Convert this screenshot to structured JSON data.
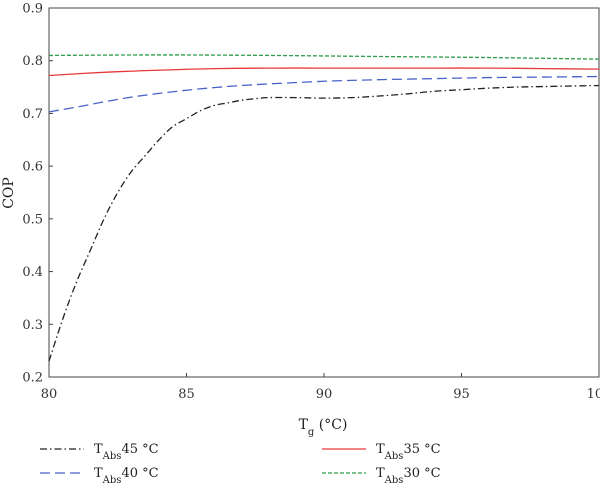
{
  "chart_data": {
    "type": "line",
    "title": "",
    "xlabel": {
      "main": "T",
      "sub": "g",
      "unit": " (°C)"
    },
    "ylabel": "COP",
    "xlim": [
      80,
      100
    ],
    "ylim": [
      0.2,
      0.9
    ],
    "xticks": [
      "80",
      "85",
      "90",
      "95",
      "100"
    ],
    "yticks": [
      "0.2",
      "0.3",
      "0.4",
      "0.5",
      "0.6",
      "0.7",
      "0.8",
      "0.9"
    ],
    "grid": false,
    "legend_position": "bottom",
    "series": [
      {
        "name": {
          "main": "T",
          "sub": "Abs",
          "rest": "45 °C"
        },
        "color": "#222222",
        "dash": "dash-dot",
        "x": [
          80,
          80.5,
          81,
          81.5,
          82,
          82.5,
          83,
          83.5,
          84,
          84.5,
          85,
          85.5,
          86,
          86.5,
          87,
          87.5,
          88,
          89,
          90,
          91,
          92,
          93,
          94,
          95,
          96,
          97,
          98,
          99,
          100
        ],
        "y": [
          0.23,
          0.31,
          0.38,
          0.44,
          0.5,
          0.55,
          0.59,
          0.62,
          0.65,
          0.675,
          0.69,
          0.705,
          0.715,
          0.72,
          0.725,
          0.728,
          0.73,
          0.73,
          0.729,
          0.73,
          0.733,
          0.737,
          0.742,
          0.745,
          0.748,
          0.75,
          0.751,
          0.752,
          0.753
        ]
      },
      {
        "name": {
          "main": "T",
          "sub": "Abs",
          "rest": "35 °C"
        },
        "color": "#e8393a",
        "dash": "solid",
        "x": [
          80,
          82,
          84,
          86,
          88,
          90,
          92,
          94,
          96,
          98,
          100
        ],
        "y": [
          0.772,
          0.778,
          0.782,
          0.785,
          0.786,
          0.786,
          0.786,
          0.786,
          0.786,
          0.785,
          0.784
        ]
      },
      {
        "name": {
          "main": "T",
          "sub": "Abs",
          "rest": "40 °C"
        },
        "color": "#4a62c8",
        "dash": "long-dash",
        "x": [
          80,
          81,
          82,
          83,
          84,
          85,
          86,
          87,
          88,
          90,
          92,
          94,
          96,
          98,
          100
        ],
        "y": [
          0.703,
          0.712,
          0.722,
          0.731,
          0.738,
          0.744,
          0.749,
          0.753,
          0.756,
          0.761,
          0.764,
          0.766,
          0.768,
          0.769,
          0.77
        ]
      },
      {
        "name": {
          "main": "T",
          "sub": "Abs",
          "rest": "30 °C"
        },
        "color": "#2e9a4a",
        "dash": "short-dash",
        "x": [
          80,
          84,
          88,
          92,
          96,
          100
        ],
        "y": [
          0.81,
          0.811,
          0.81,
          0.808,
          0.806,
          0.803
        ]
      }
    ]
  }
}
